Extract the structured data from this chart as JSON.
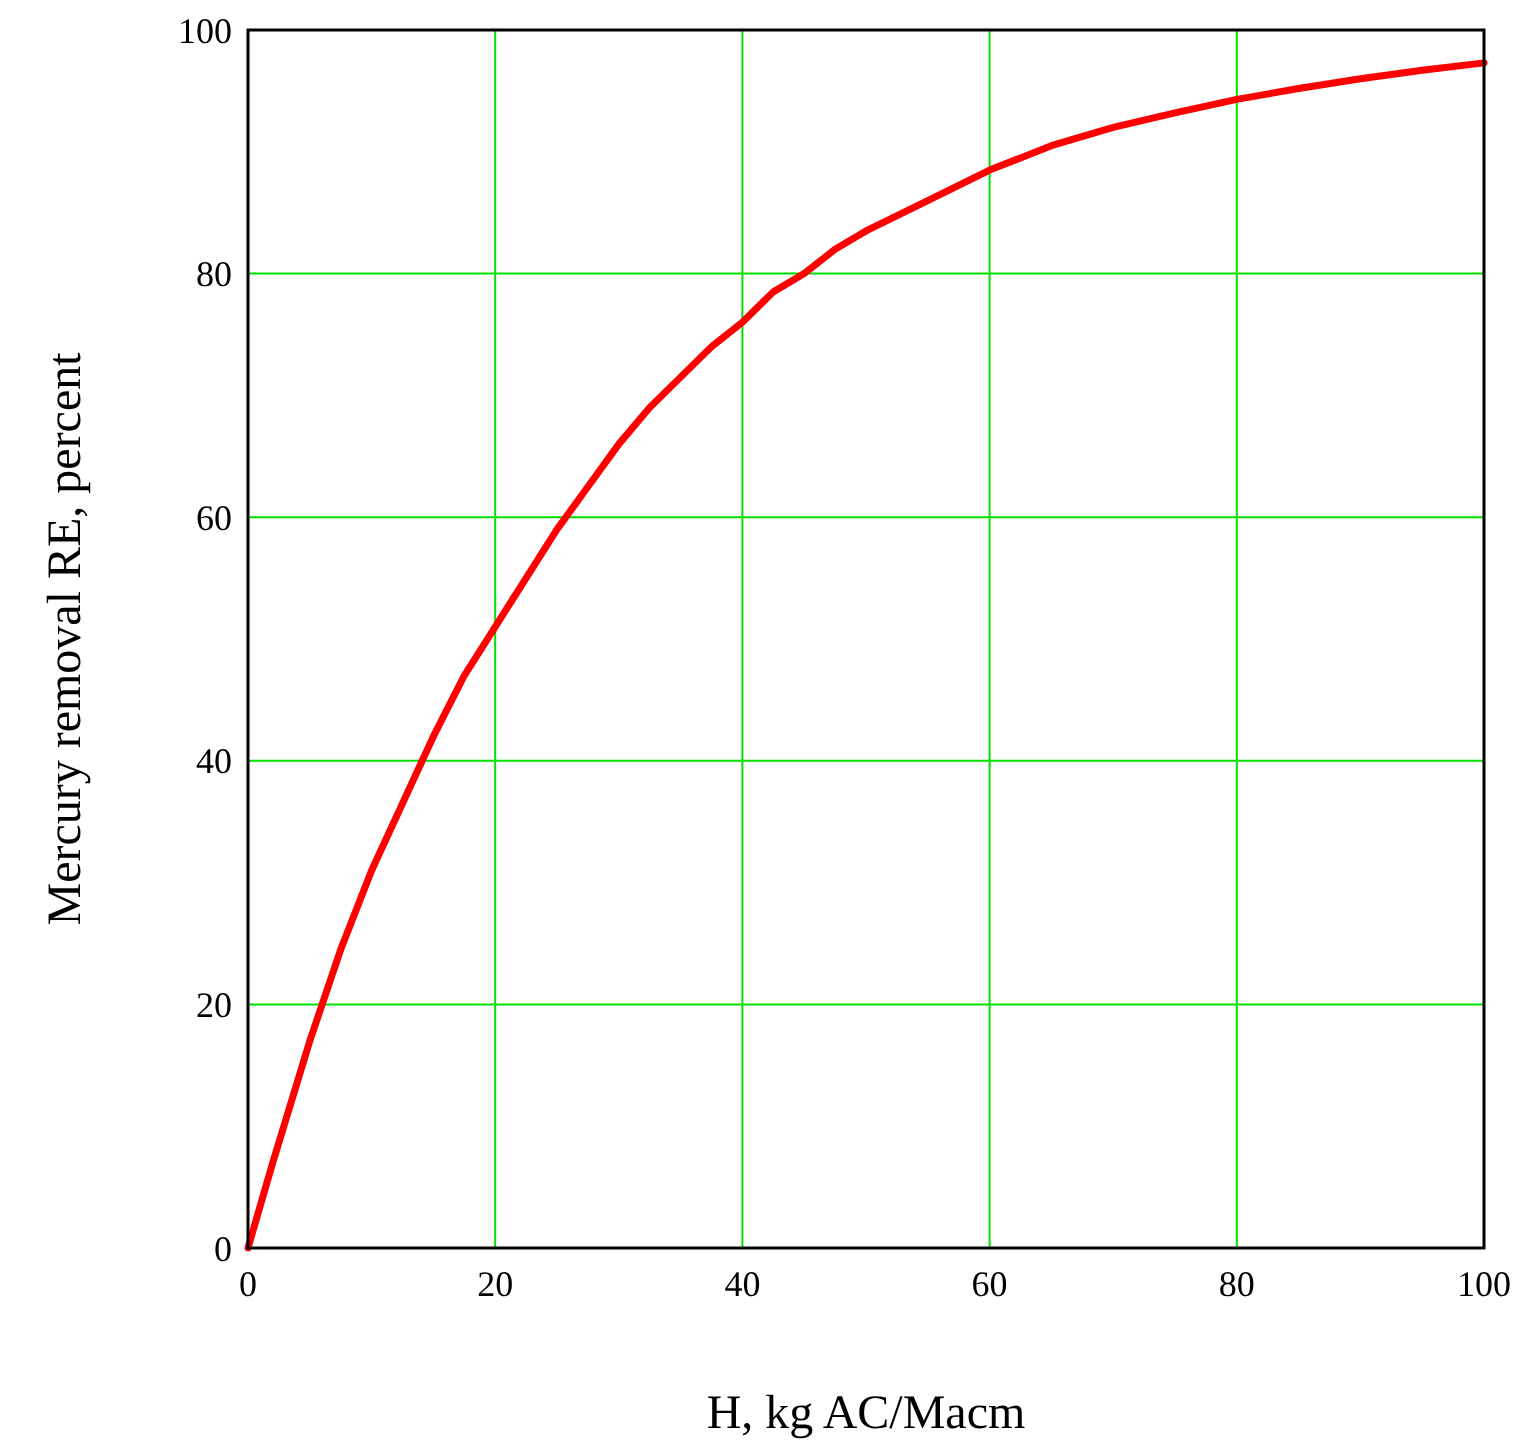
{
  "chart_data": {
    "type": "line",
    "xlabel": "H, kg AC/Macm",
    "ylabel": "Mercury removal RE, percent",
    "x": [
      0,
      2,
      5,
      7.5,
      10,
      12.5,
      15,
      17.5,
      20,
      22.5,
      25,
      27.5,
      30,
      32.5,
      35,
      37.5,
      40,
      42.5,
      45,
      47.5,
      50,
      55,
      60,
      65,
      70,
      75,
      80,
      85,
      90,
      95,
      100
    ],
    "series": [
      {
        "color": "#ff0000",
        "values": [
          0,
          7,
          17,
          24.5,
          31,
          36.5,
          42,
          47,
          51,
          55,
          59,
          62.5,
          66,
          69,
          71.5,
          74,
          76,
          78.5,
          80,
          82,
          83.5,
          86,
          88.5,
          90.5,
          92,
          93.2,
          94.3,
          95.2,
          96,
          96.7,
          97.3
        ]
      }
    ],
    "xlim": [
      0,
      100
    ],
    "xticks": [
      0,
      20,
      40,
      60,
      80,
      100
    ],
    "ylim": [
      0,
      100
    ],
    "yticks": [
      0,
      20,
      40,
      60,
      80,
      100
    ],
    "grid": true
  }
}
